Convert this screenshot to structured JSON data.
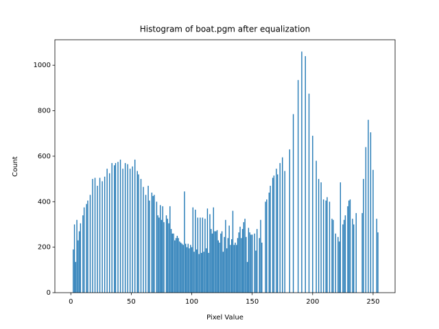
{
  "chart_data": {
    "type": "bar",
    "title": "Histogram of boat.pgm after equalization",
    "x_label": "Pixel Value",
    "y_label": "Count",
    "color": "#1f77b4",
    "x": [
      0,
      1,
      2,
      3,
      4,
      5,
      6,
      7,
      8,
      9,
      10,
      11,
      12,
      13,
      14,
      15,
      16,
      17,
      18,
      19,
      20,
      21,
      22,
      23,
      24,
      25,
      26,
      27,
      28,
      29,
      30,
      31,
      32,
      33,
      34,
      35,
      36,
      37,
      38,
      39,
      40,
      41,
      42,
      43,
      44,
      45,
      46,
      47,
      48,
      49,
      50,
      51,
      52,
      53,
      54,
      55,
      56,
      57,
      58,
      59,
      60,
      61,
      62,
      63,
      64,
      65,
      66,
      67,
      68,
      69,
      70,
      71,
      72,
      73,
      74,
      75,
      76,
      77,
      78,
      79,
      80,
      81,
      82,
      83,
      84,
      85,
      86,
      87,
      88,
      89,
      90,
      91,
      92,
      93,
      94,
      95,
      96,
      97,
      98,
      99,
      100,
      101,
      102,
      103,
      104,
      105,
      106,
      107,
      108,
      109,
      110,
      111,
      112,
      113,
      114,
      115,
      116,
      117,
      118,
      119,
      120,
      121,
      122,
      123,
      124,
      125,
      126,
      127,
      128,
      129,
      130,
      131,
      132,
      133,
      134,
      135,
      136,
      137,
      138,
      139,
      140,
      141,
      142,
      143,
      144,
      145,
      146,
      147,
      148,
      149,
      150,
      151,
      152,
      153,
      154,
      155,
      156,
      157,
      158,
      159,
      160,
      161,
      162,
      163,
      164,
      165,
      166,
      167,
      168,
      169,
      170,
      171,
      172,
      173,
      174,
      175,
      176,
      177,
      178,
      179,
      180,
      181,
      182,
      183,
      184,
      185,
      186,
      187,
      188,
      189,
      190,
      191,
      192,
      193,
      194,
      195,
      196,
      197,
      198,
      199,
      200,
      201,
      202,
      203,
      204,
      205,
      206,
      207,
      208,
      209,
      210,
      211,
      212,
      213,
      214,
      215,
      216,
      217,
      218,
      219,
      220,
      221,
      222,
      223,
      224,
      225,
      226,
      227,
      228,
      229,
      230,
      231,
      232,
      233,
      234,
      235,
      236,
      237,
      238,
      239,
      240,
      241,
      242,
      243,
      244,
      245,
      246,
      247,
      248,
      249,
      250,
      251,
      252,
      253,
      254,
      255
    ],
    "values": [
      0,
      0,
      190,
      300,
      135,
      320,
      230,
      270,
      305,
      0,
      340,
      375,
      0,
      390,
      405,
      0,
      430,
      0,
      500,
      0,
      505,
      0,
      470,
      0,
      505,
      0,
      490,
      0,
      510,
      0,
      545,
      0,
      525,
      0,
      570,
      0,
      560,
      570,
      0,
      575,
      0,
      585,
      0,
      545,
      0,
      570,
      0,
      565,
      0,
      545,
      0,
      555,
      0,
      585,
      0,
      535,
      520,
      0,
      500,
      0,
      465,
      0,
      430,
      0,
      470,
      405,
      0,
      440,
      425,
      430,
      0,
      400,
      340,
      330,
      385,
      320,
      380,
      310,
      0,
      340,
      325,
      305,
      380,
      280,
      260,
      260,
      230,
      240,
      250,
      240,
      225,
      220,
      215,
      210,
      445,
      215,
      200,
      215,
      195,
      210,
      200,
      375,
      180,
      365,
      190,
      330,
      170,
      330,
      175,
      330,
      180,
      325,
      195,
      370,
      175,
      345,
      280,
      260,
      375,
      270,
      270,
      275,
      230,
      220,
      260,
      270,
      180,
      245,
      320,
      195,
      240,
      295,
      210,
      235,
      360,
      210,
      220,
      210,
      240,
      265,
      290,
      240,
      280,
      310,
      325,
      245,
      135,
      285,
      265,
      255,
      255,
      0,
      260,
      185,
      280,
      0,
      240,
      320,
      220,
      0,
      0,
      400,
      410,
      0,
      440,
      470,
      0,
      505,
      515,
      0,
      545,
      520,
      0,
      570,
      0,
      595,
      0,
      535,
      0,
      0,
      0,
      630,
      0,
      0,
      785,
      0,
      0,
      0,
      935,
      0,
      0,
      1060,
      0,
      0,
      1040,
      0,
      0,
      875,
      0,
      0,
      690,
      0,
      0,
      580,
      0,
      500,
      0,
      485,
      0,
      410,
      0,
      405,
      420,
      0,
      400,
      0,
      325,
      320,
      0,
      260,
      0,
      245,
      225,
      485,
      0,
      300,
      320,
      340,
      0,
      380,
      405,
      410,
      0,
      325,
      300,
      0,
      350,
      0,
      0,
      0,
      0,
      350,
      500,
      0,
      640,
      0,
      760,
      0,
      705,
      0,
      540,
      0,
      0,
      325,
      265,
      0
    ],
    "bar_width": 0.8,
    "xlim": [
      -13.2,
      268.2
    ],
    "xticks": [
      0,
      50,
      100,
      150,
      200,
      250
    ],
    "ylim": [
      0,
      1112
    ],
    "yticks": [
      0,
      200,
      400,
      600,
      800,
      1000
    ]
  }
}
